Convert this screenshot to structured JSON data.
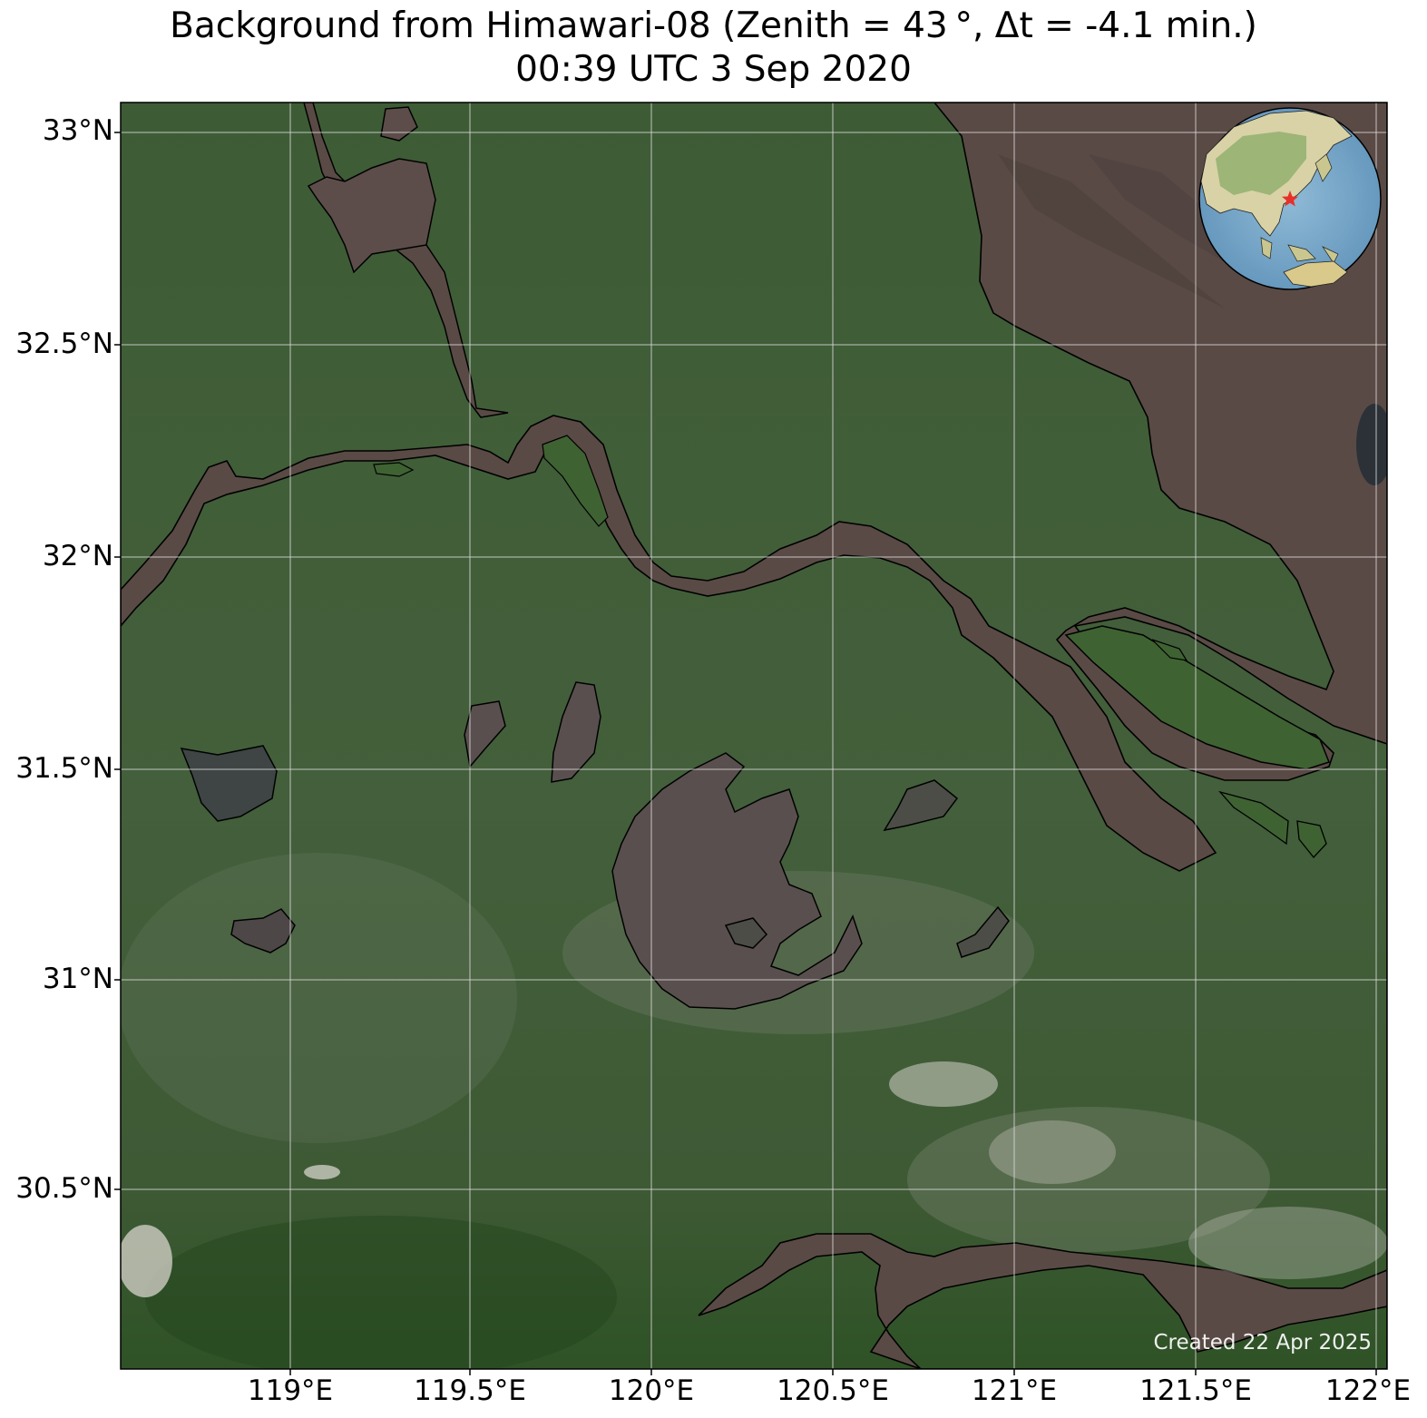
{
  "title": {
    "line1": "Background from Himawari-08 (Zenith = 43$^\\circ$, Δt = -4.1 min.)",
    "line1_display": "Background from Himawari-08 (Zenith = 43 °, Δt = -4.1 min.)",
    "line2": "00:39 UTC 3 Sep 2020"
  },
  "map": {
    "extent": {
      "lon_min": 118.55,
      "lon_max": 122.05,
      "lat_min": 30.09,
      "lat_max": 33.07
    },
    "grid": true,
    "lat_labels": [
      "33°N",
      "32.5°N",
      "32°N",
      "31.5°N",
      "31°N",
      "30.5°N"
    ],
    "lat_values": [
      33.0,
      32.5,
      32.0,
      31.5,
      31.0,
      30.5
    ],
    "lon_labels": [
      "119°E",
      "119.5°E",
      "120°E",
      "120.5°E",
      "121°E",
      "121.5°E",
      "122°E"
    ],
    "lon_values": [
      119.0,
      119.5,
      120.0,
      120.5,
      121.0,
      121.5,
      122.0
    ],
    "colors": {
      "land": "#3f5f37",
      "water": "#5a4a45",
      "coast": "#000000",
      "grid": "#d8d8d8"
    },
    "inset_globe": {
      "position": "top-right",
      "marker": "red star",
      "marker_color": "#e8302a"
    }
  },
  "credit": "Created 22 Apr 2025"
}
